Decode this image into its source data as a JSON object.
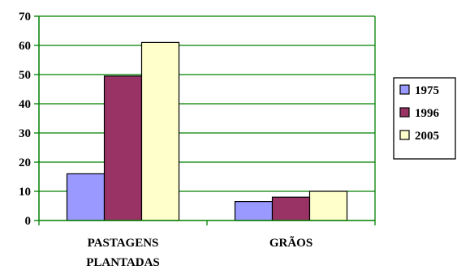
{
  "chart_data": {
    "type": "bar",
    "categories": [
      [
        "PASTAGENS",
        "PLANTADAS"
      ],
      [
        "GRÃOS"
      ]
    ],
    "series": [
      {
        "name": "1975",
        "values": [
          16,
          6.5
        ],
        "color": "#9999ff"
      },
      {
        "name": "1996",
        "values": [
          49.5,
          8
        ],
        "color": "#993366"
      },
      {
        "name": "2005",
        "values": [
          61,
          10
        ],
        "color": "#ffffcc"
      }
    ],
    "title": "",
    "xlabel": "",
    "ylabel": "",
    "ylim": [
      0,
      70
    ],
    "yticks": [
      0,
      10,
      20,
      30,
      40,
      50,
      60,
      70
    ],
    "grid": true,
    "grid_color": "#008000",
    "axis_color": "#008000",
    "legend_position": "right"
  }
}
